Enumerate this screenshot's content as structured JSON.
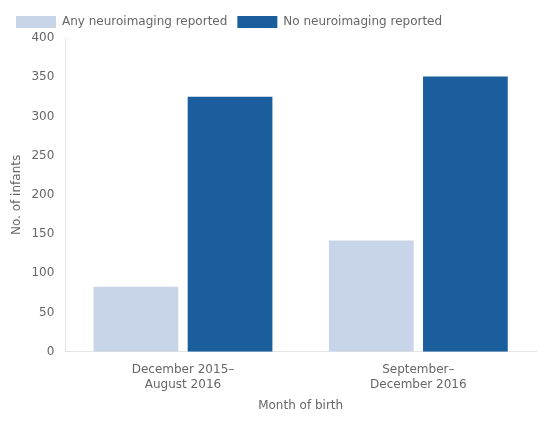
{
  "chart_data": {
    "type": "bar",
    "categories": [
      "December 2015–\nAugust 2016",
      "September–\nDecember 2016"
    ],
    "series": [
      {
        "name": "Any neuroimaging reported",
        "color": "#c8d4e8",
        "values": [
          83,
          142
        ]
      },
      {
        "name": "No neuroimaging reported",
        "color": "#1a5e9e",
        "values": [
          325,
          351
        ]
      }
    ],
    "xlabel": "Month of birth",
    "ylabel": "No. of infants",
    "ylim": [
      0,
      400
    ],
    "yticks": [
      0,
      50,
      100,
      150,
      200,
      250,
      300,
      350,
      400
    ],
    "grid": false,
    "legend": "upper left"
  }
}
